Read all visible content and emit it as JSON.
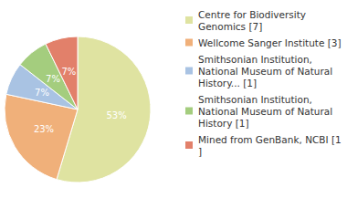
{
  "chart_data": {
    "type": "pie",
    "categories": [
      "Centre for Biodiversity Genomics [7]",
      "Wellcome Sanger Institute [3]",
      "Smithsonian Institution, National Museum of Natural History... [1]",
      "Smithsonian Institution, National Museum of Natural History [1]",
      "Mined from GenBank, NCBI [1]"
    ],
    "values": [
      53,
      23,
      7,
      7,
      7
    ],
    "value_labels": [
      "53%",
      "23%",
      "7%",
      "7%",
      "7%"
    ],
    "colors": [
      "#dfe3a1",
      "#f0b07a",
      "#a9c3e3",
      "#a4cd7e",
      "#e2806a"
    ],
    "data_labels": true,
    "legend": "right"
  }
}
